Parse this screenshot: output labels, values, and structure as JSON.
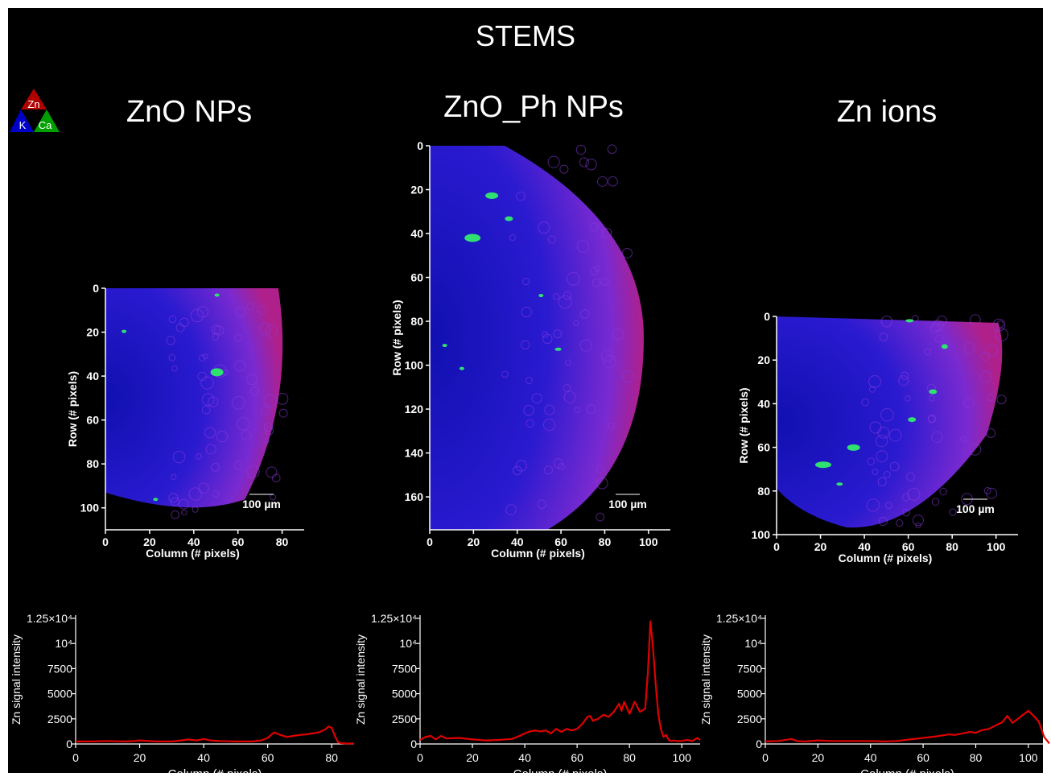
{
  "header": {
    "title": "STEMS"
  },
  "legend_triangle": {
    "top": "Zn",
    "left": "K",
    "right": "Ca",
    "colors": {
      "Zn": "#b00000",
      "K": "#0000c8",
      "Ca": "#00a000"
    }
  },
  "map_axes": {
    "xlabel": "Column (# pixels)",
    "ylabel": "Row (# pixels)",
    "scalebar_label": "100 µm"
  },
  "panels": [
    {
      "title": "ZnO NPs",
      "map": {
        "xlim": [
          0,
          90
        ],
        "ylim": [
          0,
          110
        ],
        "xticks": [
          "0",
          "20",
          "40",
          "60",
          "80"
        ],
        "yticks": [
          "0",
          "20",
          "40",
          "60",
          "80",
          "100"
        ]
      }
    },
    {
      "title": "ZnO_Ph NPs",
      "map": {
        "xlim": [
          0,
          110
        ],
        "ylim": [
          0,
          175
        ],
        "xticks": [
          "0",
          "20",
          "40",
          "60",
          "80",
          "100"
        ],
        "yticks": [
          "0",
          "20",
          "40",
          "60",
          "80",
          "100",
          "120",
          "140",
          "160"
        ]
      }
    },
    {
      "title": "Zn ions",
      "map": {
        "xlim": [
          0,
          110
        ],
        "ylim": [
          0,
          100
        ],
        "xticks": [
          "0",
          "20",
          "40",
          "60",
          "80",
          "100"
        ],
        "yticks": [
          "0",
          "20",
          "40",
          "60",
          "80",
          "100"
        ]
      }
    }
  ],
  "chart_data": [
    {
      "type": "line",
      "title": "",
      "xlabel": "Column (# pixels)",
      "ylabel": "Zn signal intensity",
      "xlim": [
        0,
        87
      ],
      "ylim": [
        0,
        12500
      ],
      "xticks": [
        "0",
        "20",
        "40",
        "60",
        "80"
      ],
      "yticks": [
        "0",
        "2500",
        "5000",
        "7500",
        "10⁴",
        "1.25×10⁴"
      ],
      "color": "#e00000",
      "x": [
        0,
        5,
        10,
        15,
        18,
        20,
        25,
        30,
        33,
        35,
        38,
        40,
        42,
        45,
        50,
        55,
        58,
        60,
        62,
        64,
        66,
        68,
        70,
        72,
        74,
        76,
        78,
        79,
        80,
        81,
        82,
        83,
        84,
        87
      ],
      "y": [
        250,
        250,
        300,
        250,
        280,
        350,
        250,
        250,
        350,
        450,
        350,
        500,
        350,
        300,
        250,
        250,
        350,
        600,
        1150,
        900,
        700,
        800,
        900,
        950,
        1050,
        1150,
        1450,
        1750,
        1600,
        800,
        150,
        80,
        50,
        50
      ]
    },
    {
      "type": "line",
      "title": "",
      "xlabel": "Column (# pixels)",
      "ylabel": "Zn signal intensity",
      "xlim": [
        0,
        107
      ],
      "ylim": [
        0,
        12500
      ],
      "xticks": [
        "0",
        "20",
        "40",
        "60",
        "80",
        "100"
      ],
      "yticks": [
        "0",
        "2500",
        "5000",
        "7500",
        "10⁴",
        "1.25×10⁴"
      ],
      "color": "#e00000",
      "x": [
        0,
        2,
        4,
        6,
        8,
        10,
        15,
        20,
        25,
        30,
        35,
        38,
        40,
        42,
        44,
        46,
        48,
        50,
        52,
        54,
        56,
        58,
        60,
        62,
        64,
        65,
        66,
        68,
        70,
        72,
        74,
        76,
        77,
        78,
        80,
        82,
        84,
        86,
        87,
        88,
        89,
        90,
        91,
        92,
        93,
        94,
        95,
        96,
        97,
        98,
        100,
        102,
        104,
        106,
        107
      ],
      "y": [
        400,
        700,
        800,
        450,
        800,
        550,
        600,
        450,
        350,
        400,
        500,
        800,
        1050,
        1250,
        1350,
        1250,
        1350,
        1050,
        1500,
        1200,
        1500,
        1350,
        1500,
        2000,
        2700,
        2800,
        2300,
        2500,
        2900,
        2700,
        3200,
        4000,
        3300,
        4200,
        3000,
        4200,
        3200,
        3500,
        7000,
        12200,
        9500,
        6000,
        3000,
        1500,
        700,
        900,
        400,
        300,
        350,
        300,
        300,
        400,
        300,
        600,
        400
      ]
    },
    {
      "type": "line",
      "title": "",
      "xlabel": "Column (# pixels)",
      "ylabel": "Zn signal intensity",
      "xlim": [
        0,
        108
      ],
      "ylim": [
        0,
        12500
      ],
      "xticks": [
        "0",
        "20",
        "40",
        "60",
        "80",
        "100"
      ],
      "yticks": [
        "0",
        "2500",
        "5000",
        "7500",
        "10⁴",
        "1.25×10⁴"
      ],
      "color": "#e00000",
      "x": [
        0,
        5,
        10,
        12,
        15,
        20,
        25,
        30,
        35,
        40,
        45,
        50,
        55,
        60,
        65,
        70,
        72,
        75,
        78,
        80,
        82,
        85,
        88,
        90,
        92,
        94,
        96,
        98,
        100,
        102,
        104,
        106,
        108
      ],
      "y": [
        250,
        300,
        500,
        300,
        250,
        350,
        300,
        300,
        300,
        300,
        250,
        300,
        450,
        600,
        750,
        950,
        900,
        1050,
        1200,
        1100,
        1350,
        1500,
        1900,
        2150,
        2800,
        2100,
        2500,
        2900,
        3300,
        2800,
        2200,
        700,
        50
      ]
    }
  ]
}
